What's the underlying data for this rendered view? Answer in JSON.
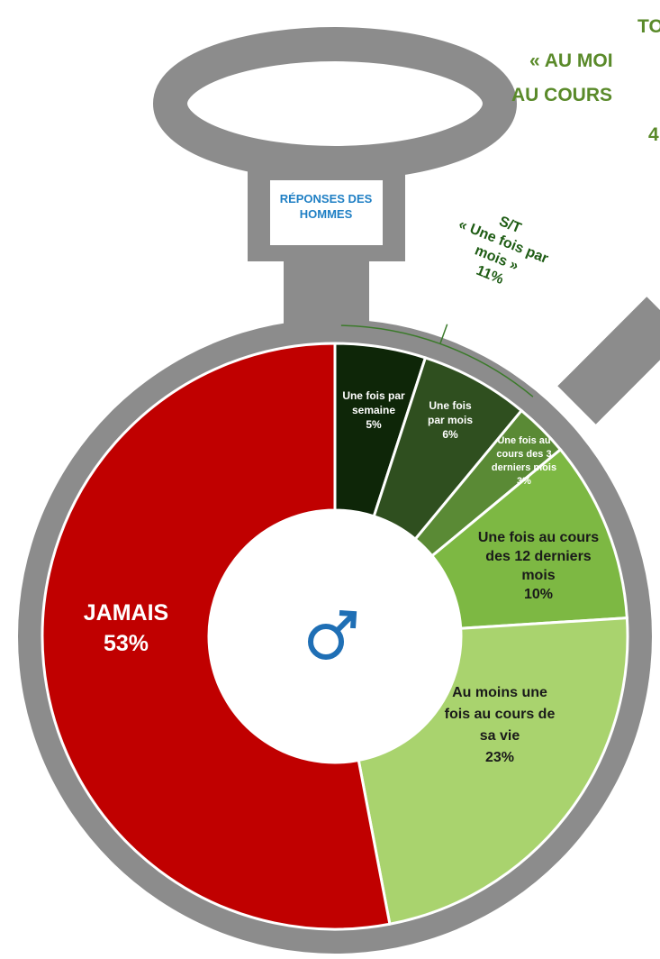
{
  "chart_data": {
    "type": "donut",
    "title_lines": [
      "TO",
      "« AU MOI",
      "AU COURS",
      "4"
    ],
    "header": "RÉPONSES DES HOMMES",
    "categories": [
      "Une fois par semaine",
      "Une fois par mois",
      "Une fois au cours des 3 derniers mois",
      "Une fois au cours des 12 derniers mois",
      "Au moins une fois au cours de sa vie",
      "JAMAIS"
    ],
    "values": [
      5,
      6,
      3,
      10,
      23,
      53
    ],
    "value_labels": [
      "5%",
      "6%",
      "3%",
      "10%",
      "23%",
      "53%"
    ],
    "colors": [
      "#0e2608",
      "#2f4f1f",
      "#5a8a35",
      "#7db843",
      "#a9d36e",
      "#c00000"
    ],
    "subtotal": {
      "label": "S/T",
      "name": "« Une fois par mois »",
      "value": 11,
      "value_label": "11%"
    }
  }
}
